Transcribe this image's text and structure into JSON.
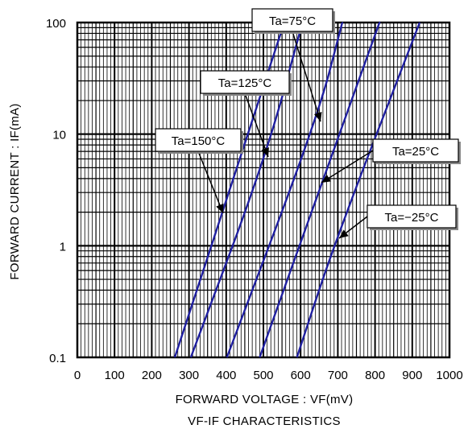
{
  "chart_data": {
    "type": "line",
    "title": "VF-IF CHARACTERISTICS",
    "xlabel": "FORWARD VOLTAGE : VF(mV)",
    "ylabel": "FORWARD CURRENT : IF(mA)",
    "xlim": [
      0,
      1000
    ],
    "ylim": [
      0.1,
      100
    ],
    "yscale": "log",
    "grid": true,
    "x_ticks": [
      "0",
      "100",
      "200",
      "300",
      "400",
      "500",
      "600",
      "700",
      "800",
      "900",
      "1000"
    ],
    "y_ticks": [
      "0.1",
      "1",
      "10",
      "100"
    ],
    "series": [
      {
        "name": "Ta=150°C",
        "points": [
          [
            262,
            0.1
          ],
          [
            390,
            2
          ],
          [
            556,
            100
          ]
        ]
      },
      {
        "name": "Ta=125°C",
        "points": [
          [
            305,
            0.1
          ],
          [
            505,
            6
          ],
          [
            605,
            100
          ]
        ]
      },
      {
        "name": "Ta=75°C",
        "points": [
          [
            402,
            0.1
          ],
          [
            645,
            14
          ],
          [
            712,
            100
          ]
        ]
      },
      {
        "name": "Ta=25°C",
        "points": [
          [
            490,
            0.1
          ],
          [
            655,
            3.5
          ],
          [
            812,
            100
          ]
        ]
      },
      {
        "name": "Ta=-25°C",
        "points": [
          [
            590,
            0.1
          ],
          [
            695,
            1.15
          ],
          [
            920,
            100
          ]
        ]
      }
    ],
    "annotations": [
      {
        "text": "Ta=150°C"
      },
      {
        "text": "Ta=125°C"
      },
      {
        "text": "Ta=75°C"
      },
      {
        "text": "Ta=25°C"
      },
      {
        "text": "Ta=−25°C"
      }
    ]
  },
  "colors": {
    "series": "#1f1fa0",
    "grid": "#000000"
  }
}
